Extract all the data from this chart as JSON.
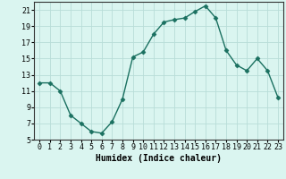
{
  "xlabel": "Humidex (Indice chaleur)",
  "x": [
    0,
    1,
    2,
    3,
    4,
    5,
    6,
    7,
    8,
    9,
    10,
    11,
    12,
    13,
    14,
    15,
    16,
    17,
    18,
    19,
    20,
    21,
    22,
    23
  ],
  "y": [
    12.0,
    12.0,
    11.0,
    8.0,
    7.0,
    6.0,
    5.8,
    7.2,
    10.0,
    15.2,
    15.8,
    18.0,
    19.5,
    19.8,
    20.0,
    20.8,
    21.5,
    20.0,
    16.0,
    14.2,
    13.5,
    15.0,
    13.5,
    10.2
  ],
  "line_color": "#1a7060",
  "marker": "D",
  "marker_size": 2.5,
  "bg_color": "#daf5f0",
  "grid_color": "#b8ddd8",
  "ylim": [
    5,
    22
  ],
  "yticks": [
    5,
    7,
    9,
    11,
    13,
    15,
    17,
    19,
    21
  ],
  "xtick_labels": [
    "0",
    "1",
    "2",
    "3",
    "4",
    "5",
    "6",
    "7",
    "8",
    "9",
    "10",
    "11",
    "12",
    "13",
    "14",
    "15",
    "16",
    "17",
    "18",
    "19",
    "20",
    "21",
    "22",
    "23"
  ],
  "xlabel_fontsize": 7,
  "tick_fontsize": 6,
  "line_width": 1.0
}
